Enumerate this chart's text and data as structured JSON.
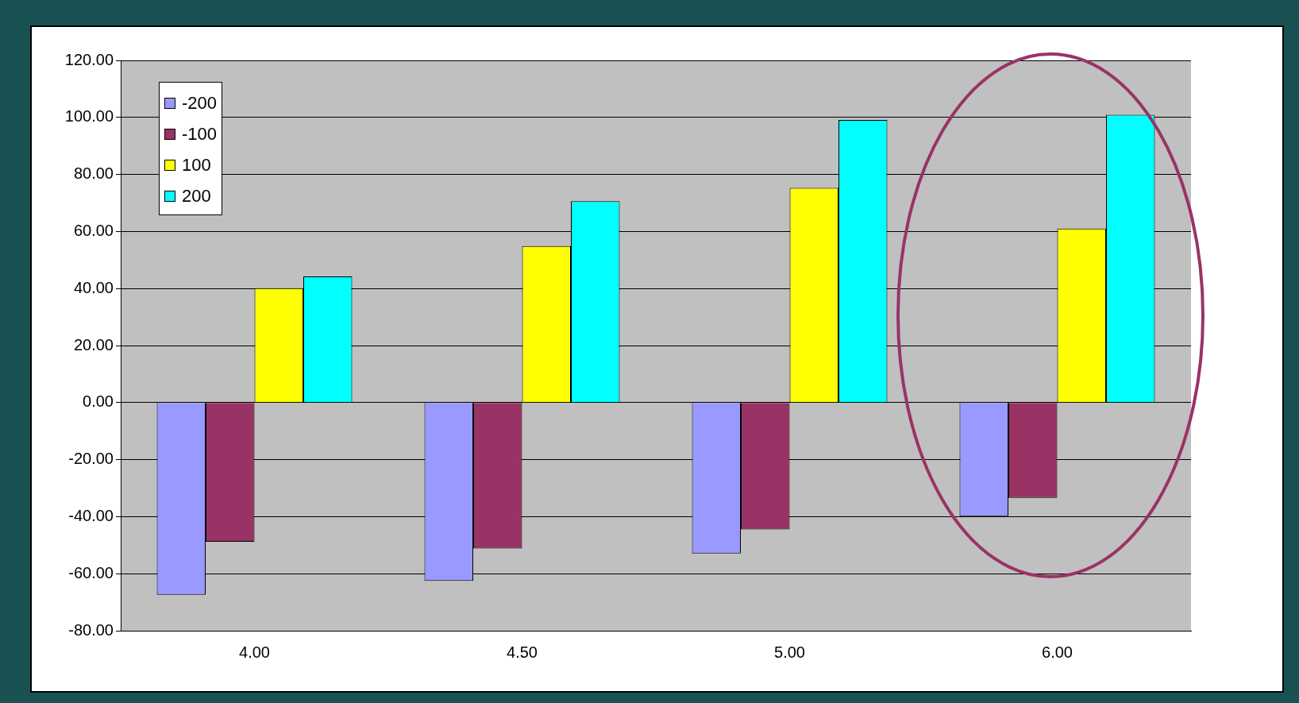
{
  "chart_data": {
    "type": "bar",
    "categories": [
      "4.00",
      "4.50",
      "5.00",
      "6.00"
    ],
    "series": [
      {
        "name": "-200",
        "color": "#9999ff",
        "values": [
          -67.4,
          -62.5,
          -52.9,
          -39.8
        ]
      },
      {
        "name": "-100",
        "color": "#993366",
        "values": [
          -48.8,
          -51.2,
          -44.5,
          -33.4
        ]
      },
      {
        "name": "100",
        "color": "#ffff00",
        "values": [
          40.1,
          54.9,
          75.3,
          61.0
        ]
      },
      {
        "name": "200",
        "color": "#00ffff",
        "values": [
          44.2,
          70.6,
          99.1,
          100.9
        ]
      }
    ],
    "ylim": [
      -80,
      120
    ],
    "yticks": [
      {
        "value": -80,
        "label": "-80.00"
      },
      {
        "value": -60,
        "label": "-60.00"
      },
      {
        "value": -40,
        "label": "-40.00"
      },
      {
        "value": -20,
        "label": "-20.00"
      },
      {
        "value": 0,
        "label": "0.00"
      },
      {
        "value": 20,
        "label": "20.00"
      },
      {
        "value": 40,
        "label": "40.00"
      },
      {
        "value": 60,
        "label": "60.00"
      },
      {
        "value": 80,
        "label": "80.00"
      },
      {
        "value": 100,
        "label": "100.00"
      },
      {
        "value": 120,
        "label": "120.00"
      }
    ],
    "grid": "y",
    "legend": "top left"
  }
}
